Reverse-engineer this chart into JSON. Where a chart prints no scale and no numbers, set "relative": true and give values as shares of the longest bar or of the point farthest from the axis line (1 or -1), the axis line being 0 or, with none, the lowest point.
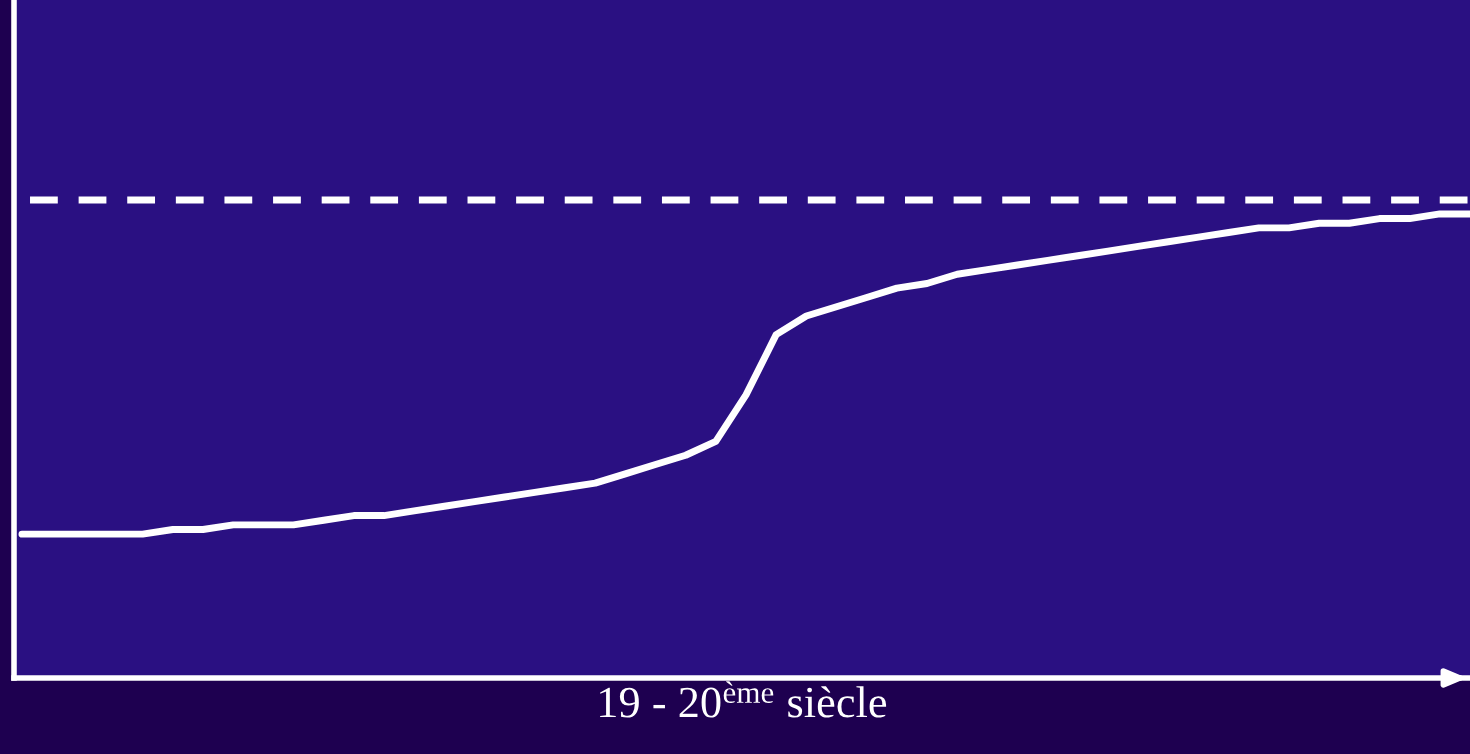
{
  "chart_data": {
    "type": "line",
    "relative": true,
    "xlabel": "19 - 20$^{ème}$ siècle",
    "categories": [
      null,
      null,
      null,
      null,
      null,
      null,
      null,
      null,
      null,
      null,
      null,
      null,
      null,
      null,
      null,
      null,
      null,
      null,
      null,
      null,
      null,
      null,
      null,
      null,
      null,
      null,
      null,
      null,
      null,
      null,
      null,
      null,
      null,
      null,
      null,
      null,
      null,
      null,
      null,
      null,
      null,
      null,
      null,
      null,
      null,
      null,
      null,
      null,
      null
    ],
    "series": [
      {
        "color": "#ffffff",
        "values": [
          0.31,
          0.31,
          0.31,
          0.31,
          0.31,
          0.32,
          0.32,
          0.33,
          0.33,
          0.33,
          0.34,
          0.35,
          0.35,
          0.36,
          0.37,
          0.38,
          0.39,
          0.4,
          0.41,
          0.42,
          0.44,
          0.46,
          0.48,
          0.51,
          0.61,
          0.74,
          0.78,
          0.8,
          0.82,
          0.84,
          0.85,
          0.87,
          0.88,
          0.89,
          0.9,
          0.91,
          0.92,
          0.93,
          0.94,
          0.95,
          0.96,
          0.97,
          0.97,
          0.98,
          0.98,
          0.99,
          0.99,
          1.0,
          1.0
        ]
      }
    ],
    "ref_lines": [
      {
        "axis": "y",
        "value": 1.03,
        "color": "#ffffff",
        "line_style": "dashed"
      }
    ],
    "line_style": "solid",
    "marker": "none",
    "legend": false
  }
}
